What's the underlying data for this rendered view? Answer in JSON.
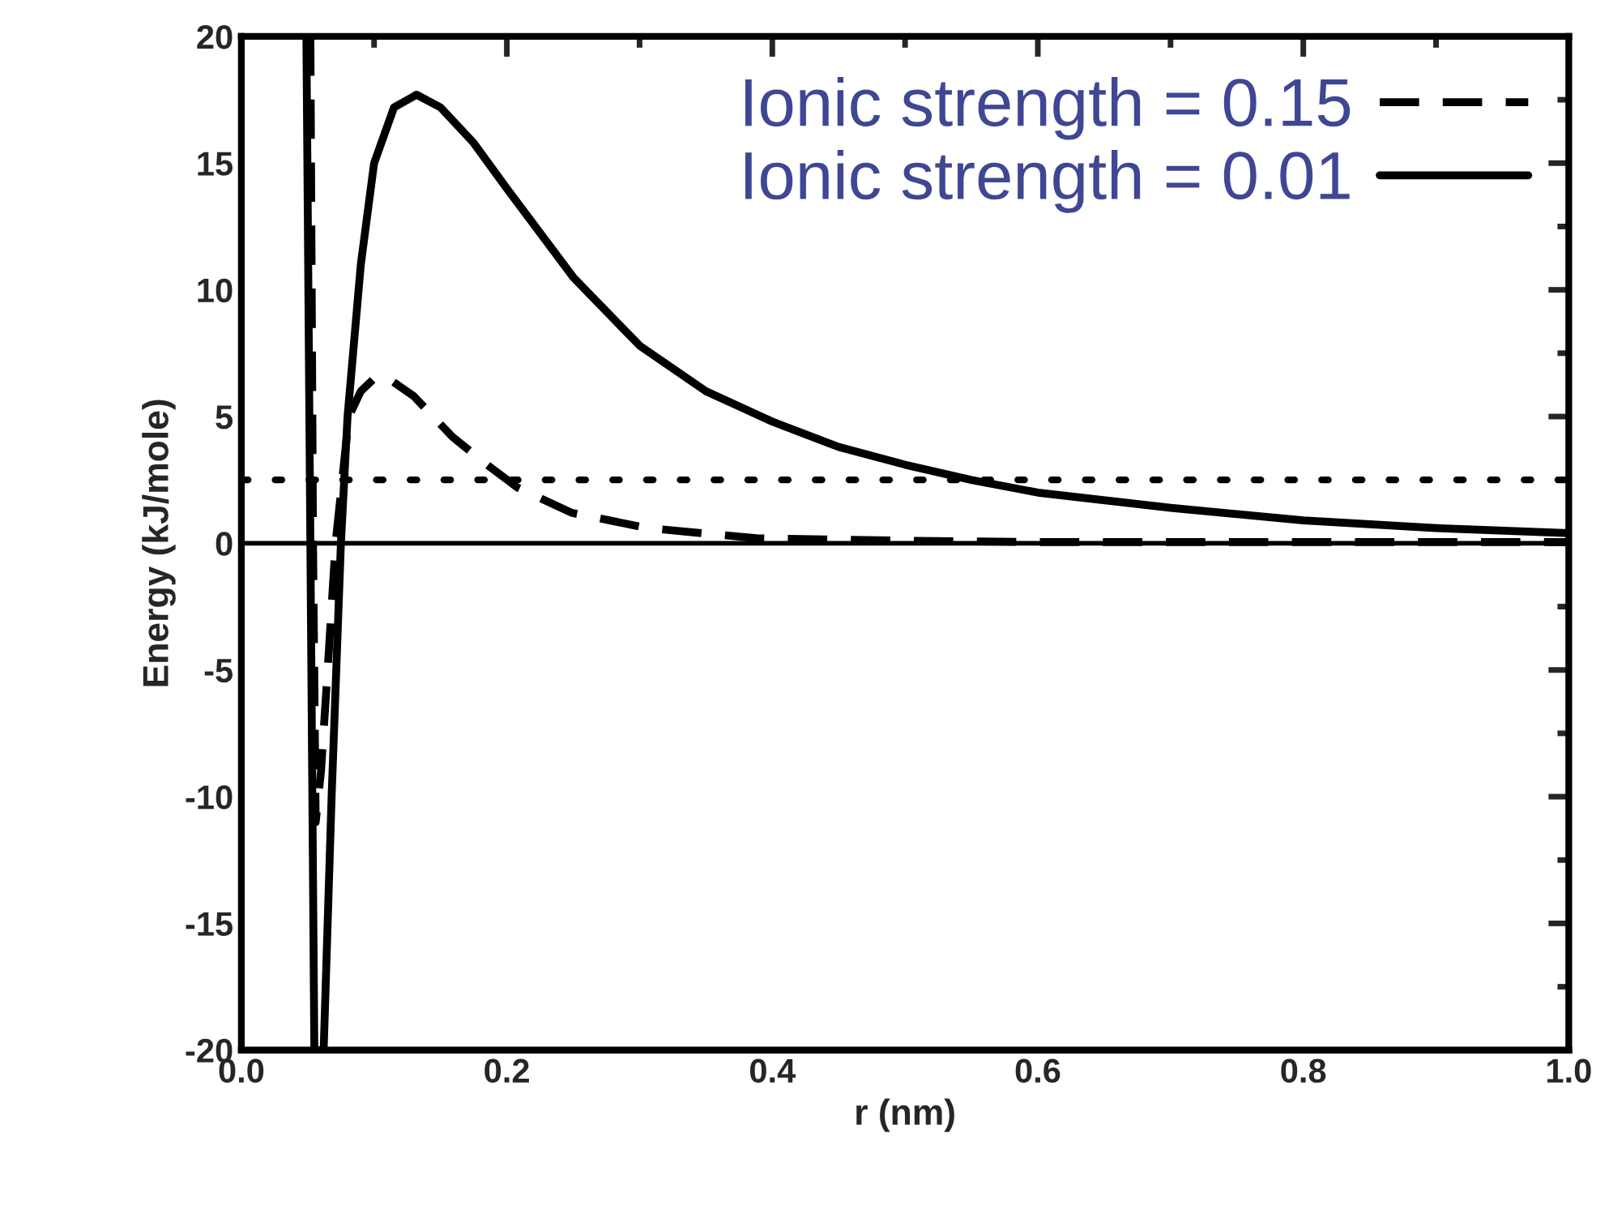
{
  "chart_data": {
    "type": "line",
    "xlabel": "r (nm)",
    "ylabel": "Energy (kJ/mole)",
    "xlim": [
      0,
      1.0
    ],
    "ylim": [
      -20,
      20
    ],
    "xticks": [
      {
        "value": 0,
        "label": "0.0"
      },
      {
        "value": 0.2,
        "label": "0.2"
      },
      {
        "value": 0.4,
        "label": "0.4"
      },
      {
        "value": 0.6,
        "label": "0.6"
      },
      {
        "value": 0.8,
        "label": "0.8"
      },
      {
        "value": 1.0,
        "label": "1.0"
      }
    ],
    "yticks": [
      -20,
      -15,
      -10,
      -5,
      0,
      5,
      10,
      15,
      20
    ],
    "legend": "top right",
    "grid": false,
    "marker": "none",
    "series": [
      {
        "name": "Ionic strength = 0.15",
        "color": "#000000",
        "line_style": "dashed",
        "x": [
          0.052,
          0.054,
          0.056,
          0.06,
          0.065,
          0.071,
          0.081,
          0.09,
          0.1,
          0.108,
          0.13,
          0.159,
          0.185,
          0.208,
          0.249,
          0.306,
          0.388,
          0.5,
          0.6,
          0.8,
          1.0
        ],
        "values": [
          20,
          0,
          -11,
          -9,
          -5,
          0,
          5,
          6.0,
          6.5,
          6.6,
          5.8,
          4.2,
          3.1,
          2.2,
          1.2,
          0.6,
          0.2,
          0.1,
          0.05,
          0.05,
          0.05
        ]
      },
      {
        "name": "Ionic strength = 0.01",
        "color": "#000000",
        "line_style": "solid",
        "x": [
          0.049,
          0.052,
          0.055,
          0.062,
          0.068,
          0.075,
          0.08,
          0.09,
          0.1,
          0.115,
          0.132,
          0.15,
          0.175,
          0.2,
          0.25,
          0.3,
          0.35,
          0.4,
          0.45,
          0.5,
          0.55,
          0.6,
          0.7,
          0.8,
          0.9,
          1.0
        ],
        "values": [
          20,
          0,
          -20,
          -20,
          -10,
          0,
          5,
          11,
          15,
          17.2,
          17.7,
          17.2,
          15.8,
          14,
          10.5,
          7.8,
          6.0,
          4.8,
          3.8,
          3.1,
          2.5,
          2.0,
          1.4,
          0.9,
          0.6,
          0.4
        ]
      }
    ],
    "ref_lines": [
      {
        "axis": "y",
        "value": 2.5,
        "line_style": "dotted",
        "color": "#000000"
      },
      {
        "axis": "y",
        "value": 0,
        "line_style": "solid",
        "color": "#000000"
      }
    ]
  }
}
